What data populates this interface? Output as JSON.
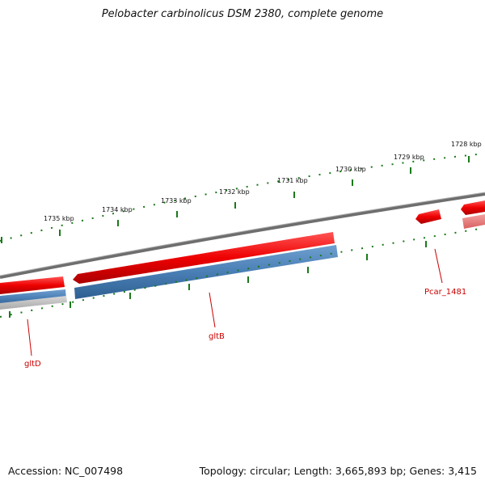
{
  "title": "Pelobacter carbinolicus DSM 2380, complete genome",
  "footer": {
    "accession": "Accession: NC_007498",
    "summary": "Topology: circular; Length: 3,665,893 bp; Genes: 3,415"
  },
  "scale_labels": [
    "1735 kbp",
    "1734 kbp",
    "1733 kbp",
    "1732 kbp",
    "1731 kbp",
    "1730 kbp",
    "1729 kbp",
    "1728 kbp"
  ],
  "gene_labels": [
    {
      "name": "gltD",
      "color": "#cc0000"
    },
    {
      "name": "gltB",
      "color": "#cc0000"
    },
    {
      "name": "Pcar_1481",
      "color": "#cc0000"
    }
  ],
  "colors": {
    "backbone": "#7a7a7a",
    "gene_red": "#ee1111",
    "gene_blue": "#4a7fb5",
    "tick_green": "#1a7a1a",
    "label_red": "#cc0000"
  }
}
